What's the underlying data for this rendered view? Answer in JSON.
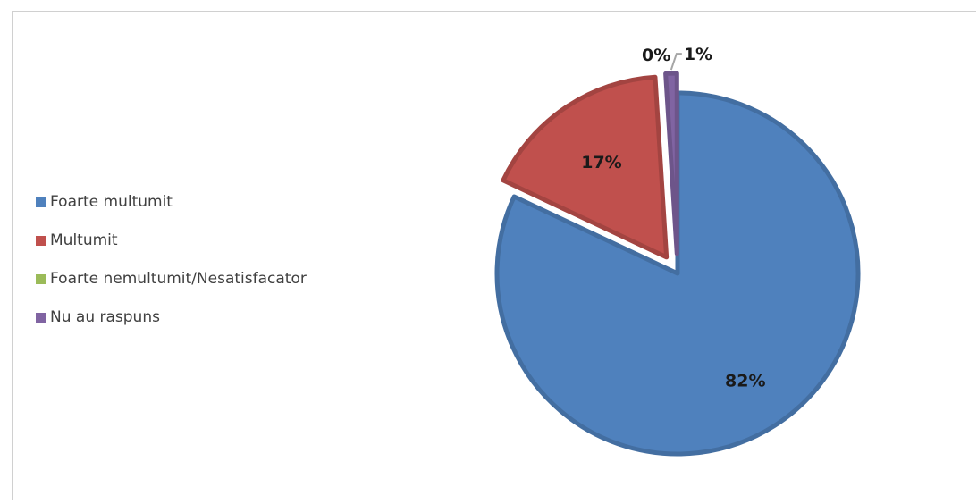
{
  "chart_data": {
    "type": "pie",
    "title": "",
    "legend_position": "left",
    "slices": [
      {
        "label": "Foarte multumit",
        "value": 82,
        "display": "82%",
        "color": "#4f81bd",
        "exploded": false
      },
      {
        "label": "Multumit",
        "value": 17,
        "display": "17%",
        "color": "#c0504d",
        "exploded": true
      },
      {
        "label": "Foarte nemultumit/Nesatisfacator",
        "value": 0,
        "display": "0%",
        "color": "#9bbb59",
        "exploded": true
      },
      {
        "label": "Nu au raspuns",
        "value": 1,
        "display": "1%",
        "color": "#8064a2",
        "exploded": true
      }
    ]
  }
}
